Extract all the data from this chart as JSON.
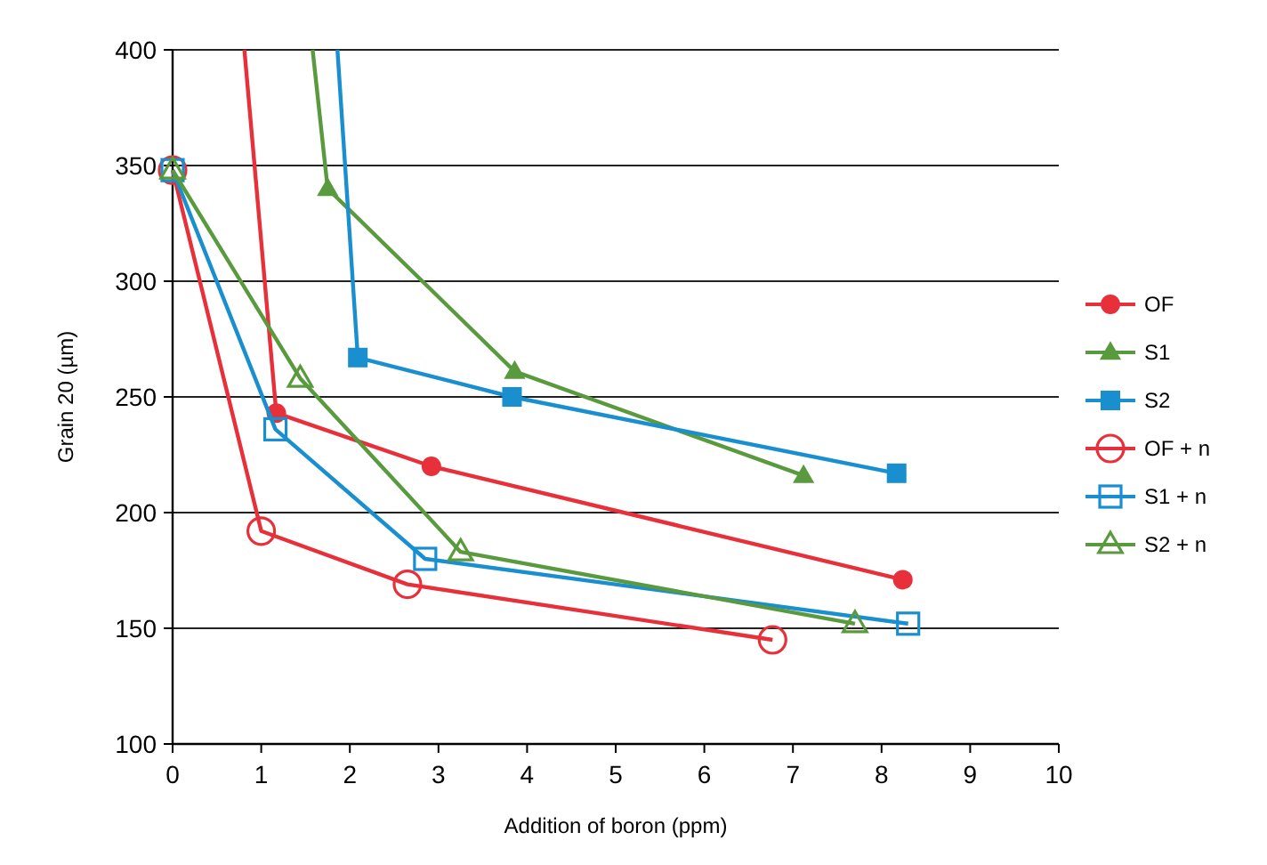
{
  "chart_data": {
    "type": "line",
    "xlabel": "Addition of boron (ppm)",
    "ylabel": "Grain 20 (µm)",
    "xlim": [
      0,
      10
    ],
    "xticks": [
      0,
      1,
      2,
      3,
      4,
      5,
      6,
      7,
      8,
      9,
      10
    ],
    "ylim": [
      100,
      400
    ],
    "yticks": [
      100,
      150,
      200,
      250,
      300,
      350,
      400
    ],
    "grid": "y",
    "legend": "right",
    "series": [
      {
        "name": "OF",
        "color": "#e8303a",
        "marker": "circle",
        "x": [
          0.81,
          1.17,
          2.92,
          8.24
        ],
        "values": [
          400,
          243,
          220,
          171
        ]
      },
      {
        "name": "S1",
        "color": "#5a9a3e",
        "marker": "triangle",
        "x": [
          1.58,
          1.75,
          3.86,
          7.12
        ],
        "values": [
          400,
          340,
          261,
          216
        ]
      },
      {
        "name": "S2",
        "color": "#1a8fd0",
        "marker": "square",
        "x": [
          1.86,
          2.09,
          3.83,
          8.17
        ],
        "values": [
          400,
          267,
          250,
          217
        ]
      },
      {
        "name": "OF + n",
        "color": "#e8303a",
        "marker": "circle-open",
        "x": [
          0,
          1.0,
          2.65,
          6.77
        ],
        "values": [
          348,
          192,
          169,
          145
        ]
      },
      {
        "name": "S1 + n",
        "color": "#1a8fd0",
        "marker": "square-open",
        "x": [
          0,
          1.16,
          2.85,
          8.3
        ],
        "values": [
          348,
          236,
          180,
          152
        ]
      },
      {
        "name": "S2 + n",
        "color": "#5a9a3e",
        "marker": "triangle-open",
        "x": [
          0,
          1.44,
          3.25,
          7.7
        ],
        "values": [
          348,
          258,
          183,
          152
        ]
      }
    ]
  }
}
